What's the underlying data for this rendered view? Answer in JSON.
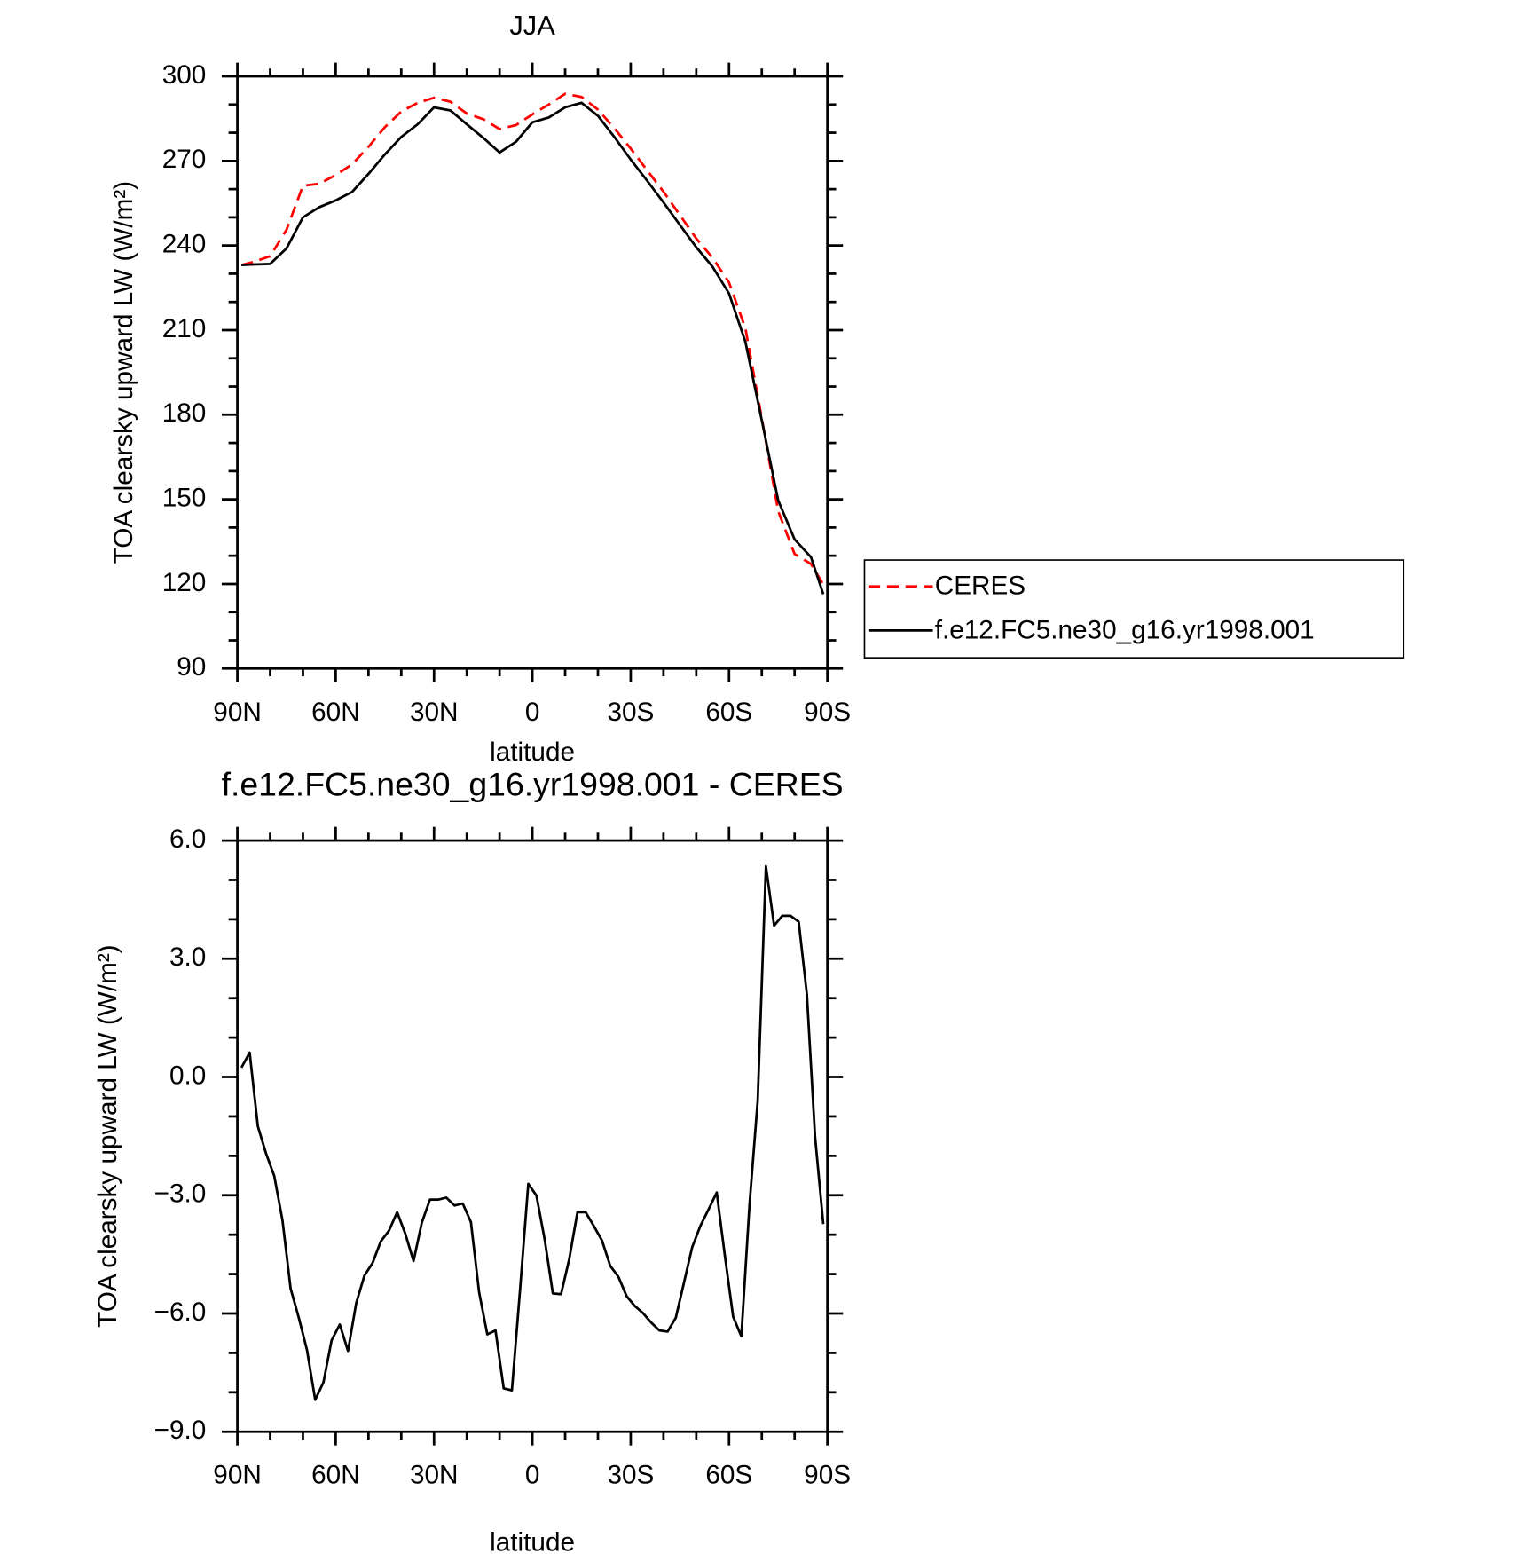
{
  "chart_data": [
    {
      "type": "line",
      "title": "JJA",
      "xlabel": "latitude",
      "ylabel": "TOA clearsky upward LW (W/m²)",
      "x": [
        88.75,
        85,
        80,
        75,
        70,
        65,
        60,
        55,
        50,
        45,
        40,
        35,
        30,
        25,
        20,
        15,
        10,
        5,
        0,
        -5,
        -10,
        -15,
        -20,
        -25,
        -30,
        -35,
        -40,
        -45,
        -50,
        -55,
        -60,
        -65,
        -70,
        -75,
        -80,
        -85,
        -88.75
      ],
      "series": [
        {
          "name": "CERES",
          "color": "#ff0000",
          "linestyle": "dashed",
          "values": [
            233.1,
            234.2,
            236.2,
            245.6,
            261.2,
            261.9,
            265,
            268.8,
            275,
            282,
            287.5,
            290.6,
            292.4,
            291,
            286.8,
            284.8,
            281.3,
            282.7,
            286.5,
            290,
            293.8,
            292.7,
            288.2,
            281.6,
            274.4,
            266.7,
            259.1,
            250.8,
            242.5,
            235.6,
            226.9,
            210.6,
            178.7,
            145.8,
            130.6,
            127.1,
            119.8
          ]
        },
        {
          "name": "f.e12.FC5.ne30_g16.yr1998.001",
          "color": "#000000",
          "linestyle": "solid",
          "values": [
            233.1,
            233.3,
            233.5,
            239,
            250,
            253.6,
            256,
            259,
            265.4,
            272.3,
            278.5,
            283,
            289,
            287.9,
            283,
            278.2,
            273,
            276.8,
            283.7,
            285.4,
            289,
            290.6,
            286,
            278.5,
            270.5,
            263,
            255.3,
            247.3,
            239.4,
            232.4,
            223,
            205.8,
            178,
            149.6,
            135.8,
            129.5,
            116.4
          ]
        }
      ],
      "xlim": [
        90,
        -90
      ],
      "xticks": [
        {
          "value": 90,
          "label": "90N"
        },
        {
          "value": 60,
          "label": "60N"
        },
        {
          "value": 30,
          "label": "30N"
        },
        0,
        {
          "value": -30,
          "label": "30S"
        },
        {
          "value": -60,
          "label": "60S"
        },
        {
          "value": -90,
          "label": "90S"
        }
      ],
      "minor_xticks": [
        80,
        70,
        50,
        40,
        20,
        10,
        -10,
        -20,
        -40,
        -50,
        -70,
        -80
      ],
      "ylim": [
        90,
        300
      ],
      "yticks": [
        90,
        120,
        150,
        180,
        210,
        240,
        270,
        300
      ],
      "minor_yticks": [
        100,
        110,
        130,
        140,
        160,
        170,
        190,
        200,
        220,
        230,
        250,
        260,
        280,
        290
      ],
      "legend": "right"
    },
    {
      "type": "line",
      "title": "f.e12.FC5.ne30_g16.yr1998.001 - CERES",
      "xlabel": "latitude",
      "ylabel": "TOA clearsky upward LW (W/m²)",
      "x": [
        88.75,
        86.25,
        83.75,
        81.25,
        78.75,
        76.25,
        73.75,
        71.25,
        68.75,
        66.25,
        63.75,
        61.25,
        58.75,
        56.25,
        53.75,
        51.25,
        48.75,
        46.25,
        43.75,
        41.25,
        38.75,
        36.25,
        33.75,
        31.25,
        28.75,
        26.25,
        23.75,
        21.25,
        18.75,
        16.25,
        13.75,
        11.25,
        8.75,
        6.25,
        3.75,
        1.25,
        -1.25,
        -3.75,
        -6.25,
        -8.75,
        -11.25,
        -13.75,
        -16.25,
        -18.75,
        -21.25,
        -23.75,
        -26.25,
        -28.75,
        -31.25,
        -33.75,
        -36.25,
        -38.75,
        -41.25,
        -43.75,
        -46.25,
        -48.75,
        -51.25,
        -53.75,
        -56.25,
        -58.75,
        -61.25,
        -63.75,
        -66.25,
        -68.75,
        -71.25,
        -73.75,
        -76.25,
        -78.75,
        -81.25,
        -83.75,
        -86.25,
        -88.75
      ],
      "series": [
        {
          "color": "#000000",
          "linestyle": "solid",
          "values": [
            0.24,
            0.62,
            -1.25,
            -1.94,
            -2.51,
            -3.63,
            -5.37,
            -6.11,
            -6.93,
            -8.19,
            -7.75,
            -6.68,
            -6.28,
            -6.95,
            -5.74,
            -5.04,
            -4.72,
            -4.17,
            -3.9,
            -3.43,
            -3.98,
            -4.67,
            -3.7,
            -3.11,
            -3.11,
            -3.06,
            -3.26,
            -3.21,
            -3.68,
            -5.46,
            -6.53,
            -6.43,
            -7.9,
            -7.95,
            -5.39,
            -2.71,
            -3.01,
            -4.12,
            -5.49,
            -5.51,
            -4.62,
            -3.43,
            -3.43,
            -3.78,
            -4.15,
            -4.79,
            -5.07,
            -5.56,
            -5.81,
            -5.99,
            -6.23,
            -6.43,
            -6.46,
            -6.11,
            -5.22,
            -4.32,
            -3.78,
            -3.36,
            -2.93,
            -4.55,
            -6.08,
            -6.58,
            -3.23,
            -0.6,
            5.35,
            3.84,
            4.09,
            4.09,
            3.94,
            2.1,
            -1.52,
            -3.73
          ]
        }
      ],
      "xlim": [
        90,
        -90
      ],
      "xticks": [
        {
          "value": 90,
          "label": "90N"
        },
        {
          "value": 60,
          "label": "60N"
        },
        {
          "value": 30,
          "label": "30N"
        },
        0,
        {
          "value": -30,
          "label": "30S"
        },
        {
          "value": -60,
          "label": "60S"
        },
        {
          "value": -90,
          "label": "90S"
        }
      ],
      "minor_xticks": [
        80,
        70,
        50,
        40,
        20,
        10,
        -10,
        -20,
        -40,
        -50,
        -70,
        -80
      ],
      "ylim": [
        -9,
        6
      ],
      "yticks": [
        {
          "value": -9,
          "label": "−9.0"
        },
        {
          "value": -6,
          "label": "−6.0"
        },
        {
          "value": -3,
          "label": "−3.0"
        },
        {
          "value": 0,
          "label": "0.0"
        },
        {
          "value": 3,
          "label": "3.0"
        },
        {
          "value": 6,
          "label": "6.0"
        }
      ],
      "minor_yticks": [
        -8,
        -7,
        -5,
        -4,
        -2,
        -1,
        1,
        2,
        4,
        5
      ]
    }
  ]
}
